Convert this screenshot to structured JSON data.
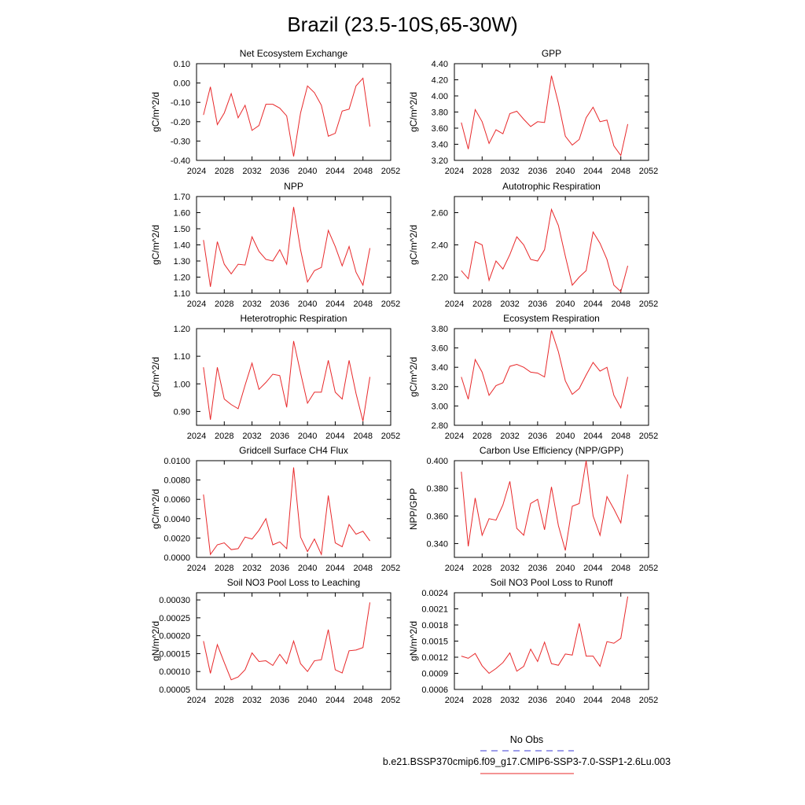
{
  "figure": {
    "title": "Brazil (23.5-10S,65-30W)",
    "legend": {
      "entries": [
        {
          "label": "No Obs",
          "color": "#3b3bd6",
          "style": "dashed"
        },
        {
          "label": "b.e21.BSSP370cmip6.f09_g17.CMIP6-SSP3-7.0-SSP1-2.6Lu.003",
          "color": "#e8282a",
          "style": "solid"
        }
      ]
    }
  },
  "chart_data": [
    {
      "type": "line",
      "title": "Net Ecosystem Exchange",
      "ylabel": "gC/m^2/d",
      "xlim": [
        2024,
        2052
      ],
      "xticks": [
        2024,
        2028,
        2032,
        2036,
        2040,
        2044,
        2048,
        2052
      ],
      "ylim": [
        -0.4,
        0.1
      ],
      "yticks": [
        "-0.40",
        "-0.30",
        "-0.20",
        "-0.10",
        "0.00",
        "0.10"
      ],
      "x": [
        2025,
        2026,
        2027,
        2028,
        2029,
        2030,
        2031,
        2032,
        2033,
        2034,
        2035,
        2036,
        2037,
        2038,
        2039,
        2040,
        2041,
        2042,
        2043,
        2044,
        2045,
        2046,
        2047,
        2048,
        2049
      ],
      "series": [
        {
          "values": [
            -0.165,
            -0.02,
            -0.215,
            -0.155,
            -0.055,
            -0.18,
            -0.115,
            -0.245,
            -0.22,
            -0.11,
            -0.11,
            -0.13,
            -0.17,
            -0.38,
            -0.155,
            -0.015,
            -0.05,
            -0.115,
            -0.275,
            -0.26,
            -0.145,
            -0.135,
            -0.015,
            0.025,
            -0.225
          ],
          "color": "#e8282a"
        }
      ]
    },
    {
      "type": "line",
      "title": "GPP",
      "ylabel": "gC/m^2/d",
      "xlim": [
        2024,
        2052
      ],
      "xticks": [
        2024,
        2028,
        2032,
        2036,
        2040,
        2044,
        2048,
        2052
      ],
      "ylim": [
        3.2,
        4.4
      ],
      "yticks": [
        "3.20",
        "3.40",
        "3.60",
        "3.80",
        "4.00",
        "4.20",
        "4.40"
      ],
      "x": [
        2025,
        2026,
        2027,
        2028,
        2029,
        2030,
        2031,
        2032,
        2033,
        2034,
        2035,
        2036,
        2037,
        2038,
        2039,
        2040,
        2041,
        2042,
        2043,
        2044,
        2045,
        2046,
        2047,
        2048,
        2049
      ],
      "series": [
        {
          "values": [
            3.67,
            3.34,
            3.83,
            3.68,
            3.41,
            3.58,
            3.53,
            3.78,
            3.81,
            3.71,
            3.62,
            3.68,
            3.67,
            4.25,
            3.91,
            3.5,
            3.39,
            3.46,
            3.73,
            3.86,
            3.68,
            3.7,
            3.38,
            3.26,
            3.65
          ],
          "color": "#e8282a"
        }
      ]
    },
    {
      "type": "line",
      "title": "NPP",
      "ylabel": "gC/m^2/d",
      "xlim": [
        2024,
        2052
      ],
      "xticks": [
        2024,
        2028,
        2032,
        2036,
        2040,
        2044,
        2048,
        2052
      ],
      "ylim": [
        1.1,
        1.7
      ],
      "yticks": [
        "1.10",
        "1.20",
        "1.30",
        "1.40",
        "1.50",
        "1.60",
        "1.70"
      ],
      "x": [
        2025,
        2026,
        2027,
        2028,
        2029,
        2030,
        2031,
        2032,
        2033,
        2034,
        2035,
        2036,
        2037,
        2038,
        2039,
        2040,
        2041,
        2042,
        2043,
        2044,
        2045,
        2046,
        2047,
        2048,
        2049
      ],
      "series": [
        {
          "values": [
            1.43,
            1.14,
            1.42,
            1.28,
            1.22,
            1.28,
            1.275,
            1.45,
            1.36,
            1.31,
            1.3,
            1.37,
            1.28,
            1.635,
            1.37,
            1.17,
            1.24,
            1.26,
            1.49,
            1.39,
            1.27,
            1.39,
            1.23,
            1.15,
            1.38
          ],
          "color": "#e8282a"
        }
      ]
    },
    {
      "type": "line",
      "title": "Autotrophic Respiration",
      "ylabel": "gC/m^2/d",
      "xlim": [
        2024,
        2052
      ],
      "xticks": [
        2024,
        2028,
        2032,
        2036,
        2040,
        2044,
        2048,
        2052
      ],
      "ylim": [
        2.1,
        2.7
      ],
      "yticks": [
        "2.20",
        "2.40",
        "2.60"
      ],
      "x": [
        2025,
        2026,
        2027,
        2028,
        2029,
        2030,
        2031,
        2032,
        2033,
        2034,
        2035,
        2036,
        2037,
        2038,
        2039,
        2040,
        2041,
        2042,
        2043,
        2044,
        2045,
        2046,
        2047,
        2048,
        2049
      ],
      "series": [
        {
          "values": [
            2.24,
            2.19,
            2.42,
            2.4,
            2.18,
            2.3,
            2.25,
            2.34,
            2.45,
            2.4,
            2.31,
            2.3,
            2.37,
            2.62,
            2.52,
            2.33,
            2.15,
            2.2,
            2.24,
            2.48,
            2.41,
            2.31,
            2.15,
            2.11,
            2.27
          ],
          "color": "#e8282a"
        }
      ]
    },
    {
      "type": "line",
      "title": "Heterotrophic Respiration",
      "ylabel": "gC/m^2/d",
      "xlim": [
        2024,
        2052
      ],
      "xticks": [
        2024,
        2028,
        2032,
        2036,
        2040,
        2044,
        2048,
        2052
      ],
      "ylim": [
        0.85,
        1.2
      ],
      "yticks": [
        "0.90",
        "1.00",
        "1.10",
        "1.20"
      ],
      "x": [
        2025,
        2026,
        2027,
        2028,
        2029,
        2030,
        2031,
        2032,
        2033,
        2034,
        2035,
        2036,
        2037,
        2038,
        2039,
        2040,
        2041,
        2042,
        2043,
        2044,
        2045,
        2046,
        2047,
        2048,
        2049
      ],
      "series": [
        {
          "values": [
            1.06,
            0.87,
            1.06,
            0.945,
            0.925,
            0.91,
            0.995,
            1.075,
            0.98,
            1.005,
            1.035,
            1.03,
            0.915,
            1.155,
            1.04,
            0.93,
            0.97,
            0.97,
            1.085,
            0.97,
            0.945,
            1.085,
            0.965,
            0.865,
            1.025
          ],
          "color": "#e8282a"
        }
      ]
    },
    {
      "type": "line",
      "title": "Ecosystem Respiration",
      "ylabel": "gC/m^2/d",
      "xlim": [
        2024,
        2052
      ],
      "xticks": [
        2024,
        2028,
        2032,
        2036,
        2040,
        2044,
        2048,
        2052
      ],
      "ylim": [
        2.8,
        3.8
      ],
      "yticks": [
        "2.80",
        "3.00",
        "3.20",
        "3.40",
        "3.60",
        "3.80"
      ],
      "x": [
        2025,
        2026,
        2027,
        2028,
        2029,
        2030,
        2031,
        2032,
        2033,
        2034,
        2035,
        2036,
        2037,
        2038,
        2039,
        2040,
        2041,
        2042,
        2043,
        2044,
        2045,
        2046,
        2047,
        2048,
        2049
      ],
      "series": [
        {
          "values": [
            3.3,
            3.07,
            3.48,
            3.35,
            3.11,
            3.21,
            3.24,
            3.41,
            3.43,
            3.4,
            3.35,
            3.34,
            3.3,
            3.78,
            3.56,
            3.26,
            3.12,
            3.18,
            3.32,
            3.45,
            3.36,
            3.4,
            3.11,
            2.98,
            3.3
          ],
          "color": "#e8282a"
        }
      ]
    },
    {
      "type": "line",
      "title": "Gridcell Surface CH4 Flux",
      "ylabel": "gC/m^2/d",
      "xlim": [
        2024,
        2052
      ],
      "xticks": [
        2024,
        2028,
        2032,
        2036,
        2040,
        2044,
        2048,
        2052
      ],
      "ylim": [
        0.0,
        0.01
      ],
      "yticks": [
        "0.0000",
        "0.0020",
        "0.0040",
        "0.0060",
        "0.0080",
        "0.0100"
      ],
      "x": [
        2025,
        2026,
        2027,
        2028,
        2029,
        2030,
        2031,
        2032,
        2033,
        2034,
        2035,
        2036,
        2037,
        2038,
        2039,
        2040,
        2041,
        2042,
        2043,
        2044,
        2045,
        2046,
        2047,
        2048,
        2049
      ],
      "series": [
        {
          "values": [
            0.0065,
            0.0003,
            0.0013,
            0.0015,
            0.0008,
            0.0009,
            0.0021,
            0.0019,
            0.0028,
            0.004,
            0.0013,
            0.0016,
            0.0009,
            0.0093,
            0.0021,
            0.0006,
            0.0019,
            0.0003,
            0.0064,
            0.0015,
            0.0011,
            0.0034,
            0.0024,
            0.0027,
            0.0017
          ],
          "color": "#e8282a"
        }
      ]
    },
    {
      "type": "line",
      "title": "Carbon Use Efficiency (NPP/GPP)",
      "ylabel": "NPP/GPP",
      "xlim": [
        2024,
        2052
      ],
      "xticks": [
        2024,
        2028,
        2032,
        2036,
        2040,
        2044,
        2048,
        2052
      ],
      "ylim": [
        0.33,
        0.4
      ],
      "yticks": [
        "0.340",
        "0.360",
        "0.380",
        "0.400"
      ],
      "x": [
        2025,
        2026,
        2027,
        2028,
        2029,
        2030,
        2031,
        2032,
        2033,
        2034,
        2035,
        2036,
        2037,
        2038,
        2039,
        2040,
        2041,
        2042,
        2043,
        2044,
        2045,
        2046,
        2047,
        2048,
        2049
      ],
      "series": [
        {
          "values": [
            0.392,
            0.338,
            0.373,
            0.346,
            0.358,
            0.357,
            0.368,
            0.385,
            0.351,
            0.346,
            0.369,
            0.372,
            0.35,
            0.381,
            0.353,
            0.335,
            0.367,
            0.369,
            0.4,
            0.36,
            0.346,
            0.374,
            0.365,
            0.355,
            0.39
          ],
          "color": "#e8282a"
        }
      ]
    },
    {
      "type": "line",
      "title": "Soil NO3 Pool Loss to Leaching",
      "ylabel": "gN/m^2/d",
      "xlim": [
        2024,
        2052
      ],
      "xticks": [
        2024,
        2028,
        2032,
        2036,
        2040,
        2044,
        2048,
        2052
      ],
      "ylim": [
        5e-05,
        0.00032
      ],
      "yticks": [
        "0.00005",
        "0.00010",
        "0.00015",
        "0.00020",
        "0.00025",
        "0.00030"
      ],
      "x": [
        2025,
        2026,
        2027,
        2028,
        2029,
        2030,
        2031,
        2032,
        2033,
        2034,
        2035,
        2036,
        2037,
        2038,
        2039,
        2040,
        2041,
        2042,
        2043,
        2044,
        2045,
        2046,
        2047,
        2048,
        2049
      ],
      "series": [
        {
          "values": [
            0.000185,
            9.5e-05,
            0.000175,
            0.000125,
            7.7e-05,
            8.5e-05,
            0.000105,
            0.000152,
            0.000128,
            0.00013,
            0.000117,
            0.000148,
            0.000122,
            0.000185,
            0.000122,
            0.0001,
            0.00013,
            0.000133,
            0.000217,
            0.000105,
            9.6e-05,
            0.000158,
            0.00016,
            0.000167,
            0.000293
          ],
          "color": "#e8282a"
        }
      ]
    },
    {
      "type": "line",
      "title": "Soil NO3 Pool Loss to Runoff",
      "ylabel": "gN/m^2/d",
      "xlim": [
        2024,
        2052
      ],
      "xticks": [
        2024,
        2028,
        2032,
        2036,
        2040,
        2044,
        2048,
        2052
      ],
      "ylim": [
        0.0006,
        0.0024
      ],
      "yticks": [
        "0.0006",
        "0.0009",
        "0.0012",
        "0.0015",
        "0.0018",
        "0.0021",
        "0.0024"
      ],
      "x": [
        2025,
        2026,
        2027,
        2028,
        2029,
        2030,
        2031,
        2032,
        2033,
        2034,
        2035,
        2036,
        2037,
        2038,
        2039,
        2040,
        2041,
        2042,
        2043,
        2044,
        2045,
        2046,
        2047,
        2048,
        2049
      ],
      "series": [
        {
          "values": [
            0.00122,
            0.00118,
            0.00127,
            0.00104,
            0.0009,
            0.00099,
            0.0011,
            0.00128,
            0.00094,
            0.00103,
            0.00135,
            0.00112,
            0.00148,
            0.00108,
            0.00105,
            0.00126,
            0.00124,
            0.00183,
            0.00122,
            0.00122,
            0.00103,
            0.00149,
            0.00146,
            0.00155,
            0.00233
          ],
          "color": "#e8282a"
        }
      ]
    }
  ]
}
